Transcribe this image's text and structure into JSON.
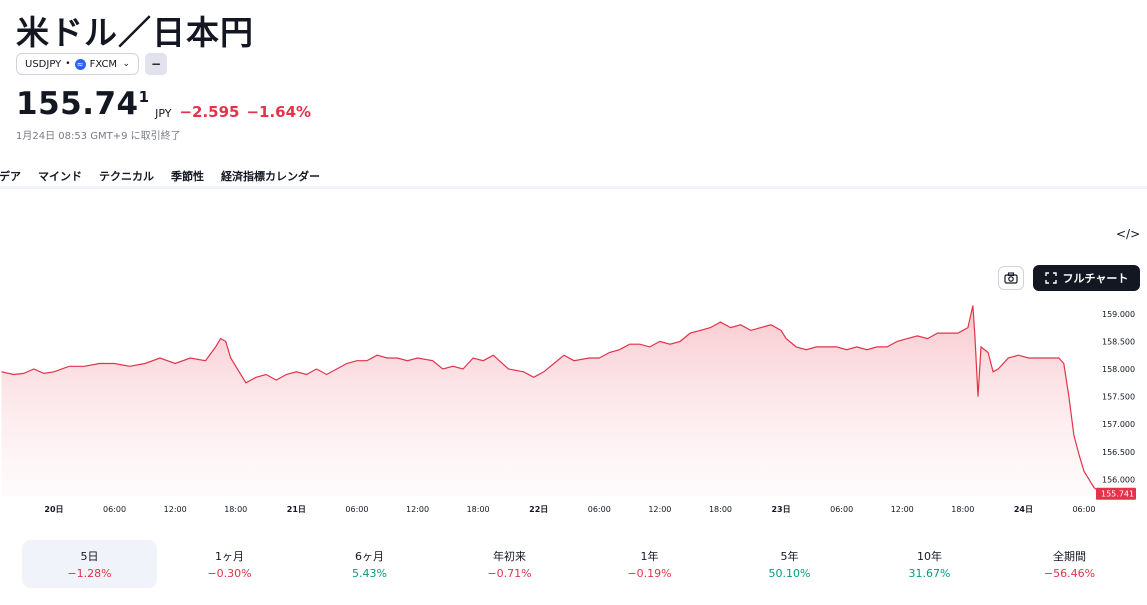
{
  "header": {
    "title": "米ドル／日本円",
    "symbol": "USDJPY",
    "sep": "•",
    "exchange": "FXCM",
    "dash": "−",
    "price_main": "155.74",
    "price_sup": "1",
    "currency": "JPY",
    "change": "−2.595",
    "change_pct": "−1.64%",
    "timestamp": "1月24日 08:53 GMT+9 に取引終了"
  },
  "tabs": [
    "デア",
    "マインド",
    "テクニカル",
    "季節性",
    "経済指標カレンダー"
  ],
  "toolbar": {
    "embed": "</>",
    "fullchart": "フルチャート"
  },
  "chart_data": {
    "type": "area",
    "line_color": "#e2334a",
    "fill_color": "#f7c9ce",
    "ylim": [
      155.7,
      159.25
    ],
    "y_ticks": [
      "159.000",
      "158.500",
      "158.000",
      "157.500",
      "157.000",
      "156.500",
      "156.000"
    ],
    "y_tick_values": [
      159.0,
      158.5,
      158.0,
      157.5,
      157.0,
      156.5,
      156.0
    ],
    "x_ticks": [
      {
        "label": "20日",
        "bold": true
      },
      {
        "label": "06:00"
      },
      {
        "label": "12:00"
      },
      {
        "label": "18:00"
      },
      {
        "label": "21日",
        "bold": true
      },
      {
        "label": "06:00"
      },
      {
        "label": "12:00"
      },
      {
        "label": "18:00"
      },
      {
        "label": "22日",
        "bold": true
      },
      {
        "label": "06:00"
      },
      {
        "label": "12:00"
      },
      {
        "label": "18:00"
      },
      {
        "label": "23日",
        "bold": true
      },
      {
        "label": "06:00"
      },
      {
        "label": "12:00"
      },
      {
        "label": "18:00"
      },
      {
        "label": "24日",
        "bold": true
      },
      {
        "label": "06:00"
      }
    ],
    "x_tick_hours": [
      0,
      6,
      12,
      18,
      24,
      30,
      36,
      42,
      48,
      54,
      60,
      66,
      72,
      78,
      84,
      90,
      96,
      102
    ],
    "last_label": "155.741",
    "points": [
      [
        -5.2,
        157.95
      ],
      [
        -4.0,
        157.9
      ],
      [
        -3.0,
        157.92
      ],
      [
        -2.0,
        158.0
      ],
      [
        -1.0,
        157.92
      ],
      [
        0,
        157.95
      ],
      [
        1.5,
        158.05
      ],
      [
        3,
        158.05
      ],
      [
        4.5,
        158.1
      ],
      [
        6,
        158.1
      ],
      [
        7.5,
        158.05
      ],
      [
        9,
        158.1
      ],
      [
        10.5,
        158.2
      ],
      [
        12,
        158.1
      ],
      [
        13.5,
        158.2
      ],
      [
        15,
        158.15
      ],
      [
        16,
        158.4
      ],
      [
        16.5,
        158.55
      ],
      [
        17,
        158.5
      ],
      [
        17.5,
        158.2
      ],
      [
        18.5,
        157.9
      ],
      [
        19,
        157.75
      ],
      [
        20,
        157.85
      ],
      [
        21,
        157.9
      ],
      [
        22,
        157.8
      ],
      [
        23,
        157.9
      ],
      [
        24,
        157.95
      ],
      [
        25,
        157.9
      ],
      [
        26,
        158.0
      ],
      [
        27,
        157.9
      ],
      [
        28,
        158.0
      ],
      [
        29,
        158.1
      ],
      [
        30,
        158.15
      ],
      [
        31,
        158.15
      ],
      [
        32,
        158.25
      ],
      [
        33,
        158.2
      ],
      [
        34,
        158.2
      ],
      [
        35,
        158.15
      ],
      [
        36,
        158.2
      ],
      [
        37.5,
        158.15
      ],
      [
        38.5,
        158.0
      ],
      [
        39.5,
        158.05
      ],
      [
        40.5,
        158.0
      ],
      [
        41.5,
        158.2
      ],
      [
        42.5,
        158.15
      ],
      [
        43.5,
        158.25
      ],
      [
        45,
        158.0
      ],
      [
        46.5,
        157.95
      ],
      [
        47.5,
        157.85
      ],
      [
        48.5,
        157.95
      ],
      [
        49.5,
        158.1
      ],
      [
        50.5,
        158.25
      ],
      [
        51.5,
        158.15
      ],
      [
        53,
        158.2
      ],
      [
        54,
        158.2
      ],
      [
        55,
        158.3
      ],
      [
        56,
        158.35
      ],
      [
        57,
        158.45
      ],
      [
        58,
        158.45
      ],
      [
        59,
        158.4
      ],
      [
        60,
        158.5
      ],
      [
        61,
        158.45
      ],
      [
        62,
        158.5
      ],
      [
        63,
        158.65
      ],
      [
        64,
        158.7
      ],
      [
        65,
        158.75
      ],
      [
        66,
        158.85
      ],
      [
        67,
        158.75
      ],
      [
        68,
        158.8
      ],
      [
        69,
        158.7
      ],
      [
        70,
        158.75
      ],
      [
        71,
        158.8
      ],
      [
        72,
        158.7
      ],
      [
        72.5,
        158.55
      ],
      [
        73.5,
        158.4
      ],
      [
        74.5,
        158.35
      ],
      [
        75.5,
        158.4
      ],
      [
        76.5,
        158.4
      ],
      [
        77.5,
        158.4
      ],
      [
        78.5,
        158.35
      ],
      [
        79.5,
        158.4
      ],
      [
        80.5,
        158.35
      ],
      [
        81.5,
        158.4
      ],
      [
        82.5,
        158.4
      ],
      [
        83.5,
        158.5
      ],
      [
        84.5,
        158.55
      ],
      [
        85.5,
        158.6
      ],
      [
        86.5,
        158.55
      ],
      [
        87.5,
        158.65
      ],
      [
        88.5,
        158.65
      ],
      [
        89.5,
        158.65
      ],
      [
        90.5,
        158.75
      ],
      [
        91.0,
        159.15
      ],
      [
        91.2,
        158.6
      ],
      [
        91.5,
        157.5
      ],
      [
        91.8,
        158.4
      ],
      [
        92.5,
        158.3
      ],
      [
        93,
        157.95
      ],
      [
        93.5,
        158.0
      ],
      [
        94.5,
        158.2
      ],
      [
        95.5,
        158.25
      ],
      [
        96.5,
        158.2
      ],
      [
        97.5,
        158.2
      ],
      [
        98.5,
        158.2
      ],
      [
        99.5,
        158.2
      ],
      [
        100,
        158.1
      ],
      [
        100.5,
        157.5
      ],
      [
        101,
        156.8
      ],
      [
        101.5,
        156.45
      ],
      [
        102,
        156.15
      ],
      [
        102.5,
        156.0
      ],
      [
        103,
        155.85
      ],
      [
        103.5,
        155.78
      ],
      [
        104,
        155.76
      ],
      [
        104.5,
        155.741
      ]
    ]
  },
  "periods": [
    {
      "label": "5日",
      "value": "−1.28%",
      "dir": "neg",
      "active": true
    },
    {
      "label": "1ヶ月",
      "value": "−0.30%",
      "dir": "neg"
    },
    {
      "label": "6ヶ月",
      "value": "5.43%",
      "dir": "pos"
    },
    {
      "label": "年初来",
      "value": "−0.71%",
      "dir": "neg"
    },
    {
      "label": "1年",
      "value": "−0.19%",
      "dir": "neg"
    },
    {
      "label": "5年",
      "value": "50.10%",
      "dir": "pos"
    },
    {
      "label": "10年",
      "value": "31.67%",
      "dir": "pos"
    },
    {
      "label": "全期間",
      "value": "−56.46%",
      "dir": "neg"
    }
  ]
}
